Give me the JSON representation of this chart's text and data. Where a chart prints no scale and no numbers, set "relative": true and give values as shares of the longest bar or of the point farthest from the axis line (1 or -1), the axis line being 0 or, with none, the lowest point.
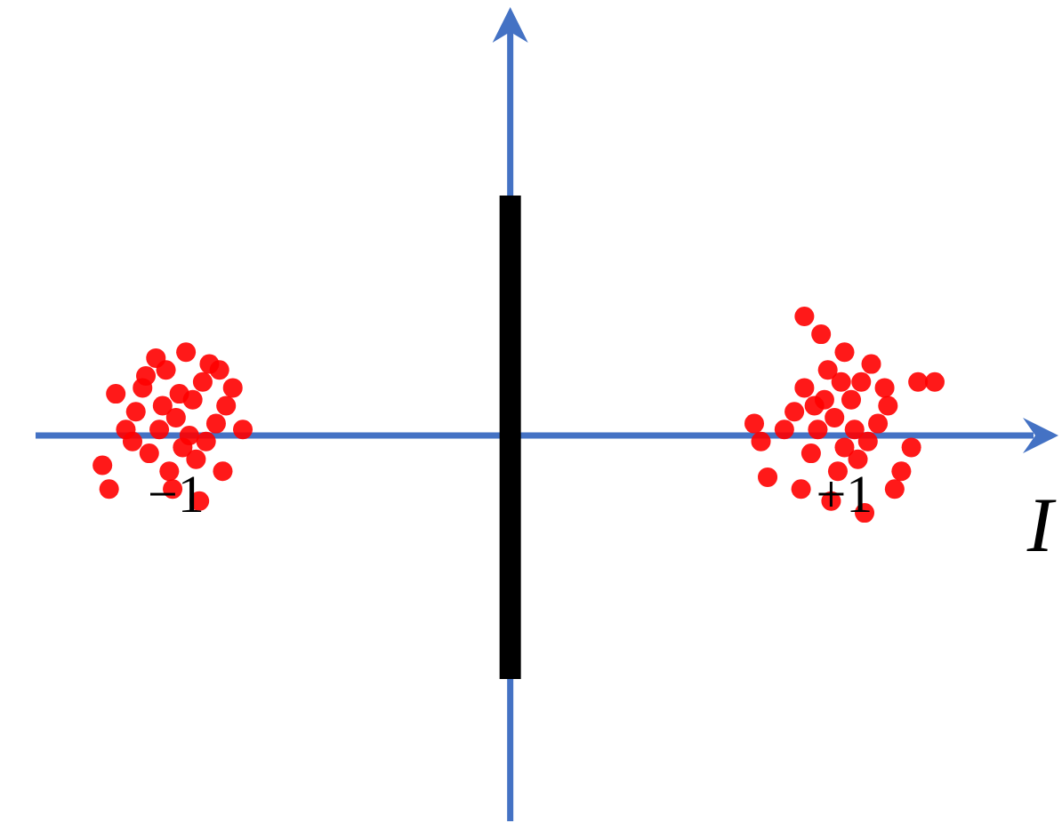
{
  "chart_data": {
    "type": "scatter",
    "xlabel": "I",
    "relative": true,
    "tick_labels": "x",
    "marker": "circle",
    "color": "#ff0000",
    "xlim": [
      -1.42,
      1.64
    ],
    "xticks": [
      {
        "value": -1,
        "label": "−1"
      },
      {
        "value": 1,
        "label": "+1"
      }
    ],
    "ref_lines": [
      {
        "axis": "x",
        "value": 0,
        "color": "#000000"
      }
    ],
    "x": [
      -1.0,
      -0.95,
      -1.05,
      -0.92,
      -1.1,
      -0.98,
      -1.12,
      -0.88,
      -1.03,
      -0.9,
      -1.15,
      -0.85,
      -1.02,
      -0.94,
      -1.08,
      -0.97,
      -1.18,
      -0.83,
      -1.22,
      -1.2,
      -0.8,
      -0.93,
      -1.06,
      -0.87,
      -1.13,
      -0.99,
      -0.96,
      -1.04,
      -0.91,
      -1.09,
      -0.86,
      -1.01,
      0.97,
      1.02,
      0.92,
      1.05,
      0.88,
      1.0,
      0.85,
      1.1,
      0.95,
      1.08,
      0.82,
      1.13,
      0.98,
      1.04,
      0.9,
      0.93,
      0.88,
      1.22,
      1.27,
      0.75,
      0.77,
      0.73,
      1.17,
      1.2,
      1.15,
      0.96,
      1.06,
      1.0,
      0.87,
      1.12,
      0.94,
      1.03,
      0.99,
      0.91,
      1.07
    ],
    "values": [
      0.15,
      0.3,
      0.05,
      0.45,
      0.4,
      -0.1,
      0.2,
      0.1,
      0.55,
      0.6,
      0.05,
      0.25,
      -0.3,
      -0.2,
      -0.15,
      0.7,
      0.35,
      0.4,
      -0.25,
      -0.45,
      0.05,
      -0.55,
      0.65,
      0.55,
      -0.05,
      0.35,
      0.0,
      0.25,
      -0.05,
      0.5,
      -0.3,
      -0.45,
      0.15,
      0.3,
      0.05,
      0.45,
      0.4,
      -0.1,
      0.2,
      0.1,
      0.55,
      0.6,
      0.05,
      0.25,
      -0.3,
      -0.2,
      -0.15,
      0.85,
      1.0,
      0.45,
      0.45,
      -0.05,
      -0.35,
      0.1,
      -0.3,
      -0.1,
      -0.45,
      -0.55,
      -0.65,
      0.7,
      -0.45,
      0.4,
      0.3,
      0.05,
      0.45,
      0.25,
      -0.05
    ]
  }
}
